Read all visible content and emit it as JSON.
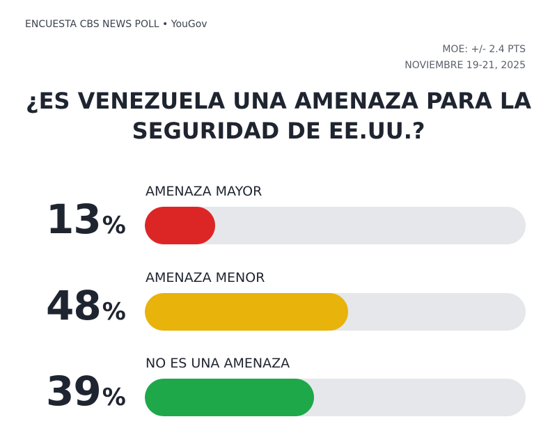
{
  "header": {
    "source": "ENCUESTA CBS NEWS POLL • YouGov",
    "moe": "MOE: +/- 2.4 PTS",
    "date": "NOVIEMBRE 19-21, 2025"
  },
  "chart_data": {
    "type": "bar",
    "orientation": "horizontal",
    "title_lines": [
      "¿ES VENEZUELA UNA AMENAZA PARA LA",
      "SEGURIDAD DE EE.UU.?"
    ],
    "categories": [
      "AMENAZA MAYOR",
      "AMENAZA MENOR",
      "NO ES UNA AMENAZA"
    ],
    "values": [
      13,
      48,
      39
    ],
    "value_labels": [
      "13",
      "48",
      "39"
    ],
    "unit": "%",
    "colors": [
      "#dc2626",
      "#e8b30b",
      "#1ea84a"
    ],
    "track_color": "#e6e7eb",
    "xlim": [
      0,
      100
    ],
    "grid": false,
    "legend": "none"
  }
}
